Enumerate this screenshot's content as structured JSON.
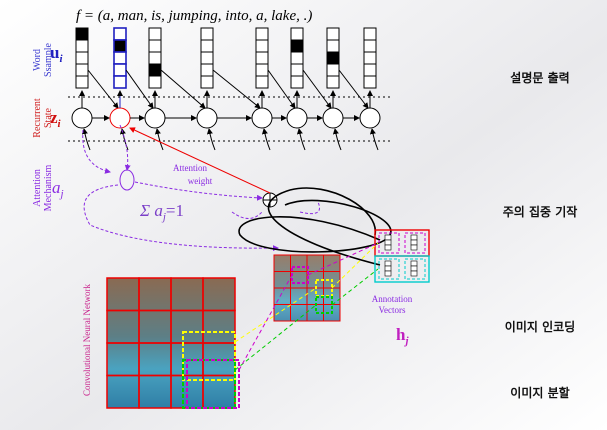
{
  "sentence": "f = (a,  man,  is,  jumping,  into,  a,  lake,  .)",
  "left_labels": {
    "word_sample": [
      "Word",
      "Ssample"
    ],
    "recurrent_state": [
      "Recurrent",
      "State"
    ],
    "attention_mechanism": [
      "Attention",
      "Mechanism"
    ],
    "cnn": "Convolutional Neural Network"
  },
  "symbols": {
    "u": {
      "main": "u",
      "sub": "i"
    },
    "z": {
      "main": "z",
      "sub": "i"
    },
    "a": {
      "main": "a",
      "sub": "j"
    },
    "h": {
      "main": "h",
      "sub": "j"
    },
    "sum": {
      "prefix": "Σ a",
      "sub": "j",
      "suffix": "=1"
    }
  },
  "diagram_labels": {
    "attention_weight": [
      "Attention",
      "weight"
    ],
    "annotation_vectors": [
      "Annotation",
      "Vectors"
    ]
  },
  "right_labels": [
    "설명문 출력",
    "주의 집중 기작",
    "이미지 인코딩",
    "이미지 분할"
  ]
}
